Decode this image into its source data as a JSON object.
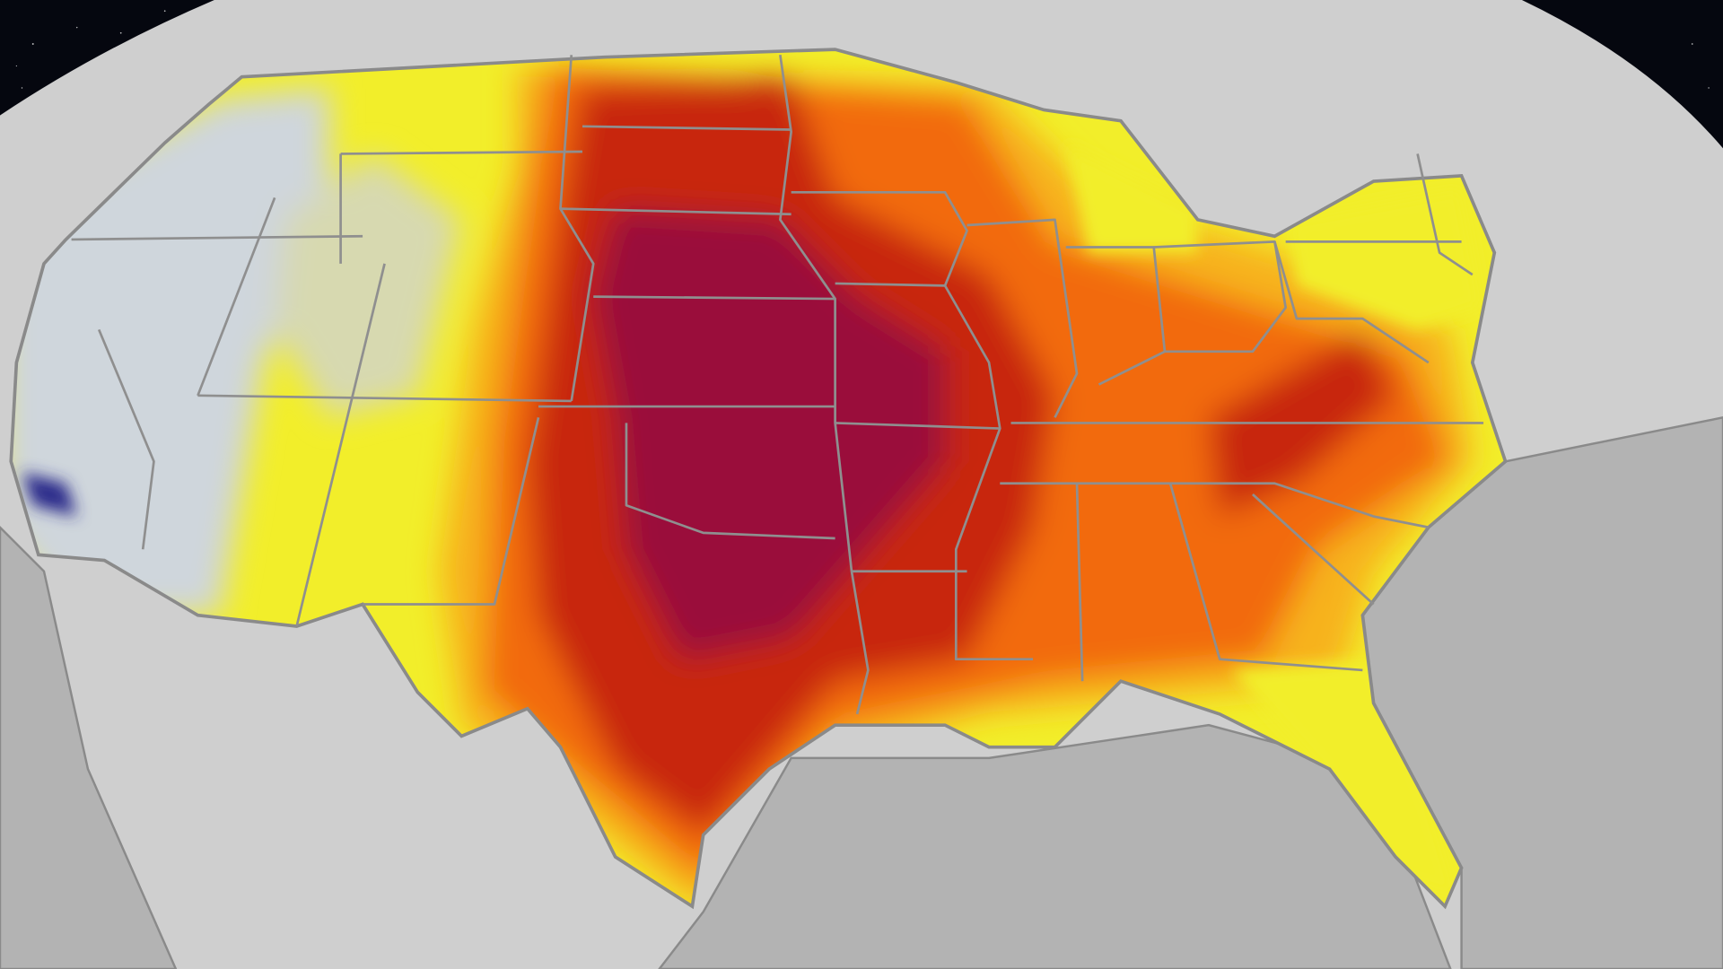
{
  "map": {
    "colors": {
      "space": "#05070f",
      "land_outside": "#cfcfcf",
      "ocean": "#b3b3b3",
      "border": "#8a8a8a",
      "cool_light": "#bfe0f7",
      "cool_dark": "#2a2a8a",
      "heat_yellow": "#f2ee2a",
      "heat_light_orange": "#f7b21a",
      "heat_orange": "#f26a0a",
      "heat_red": "#c8280f",
      "heat_maroon": "#9a0a3a"
    },
    "layers": [
      "space-background",
      "globe",
      "conus-heat-map",
      "state-borders"
    ]
  }
}
